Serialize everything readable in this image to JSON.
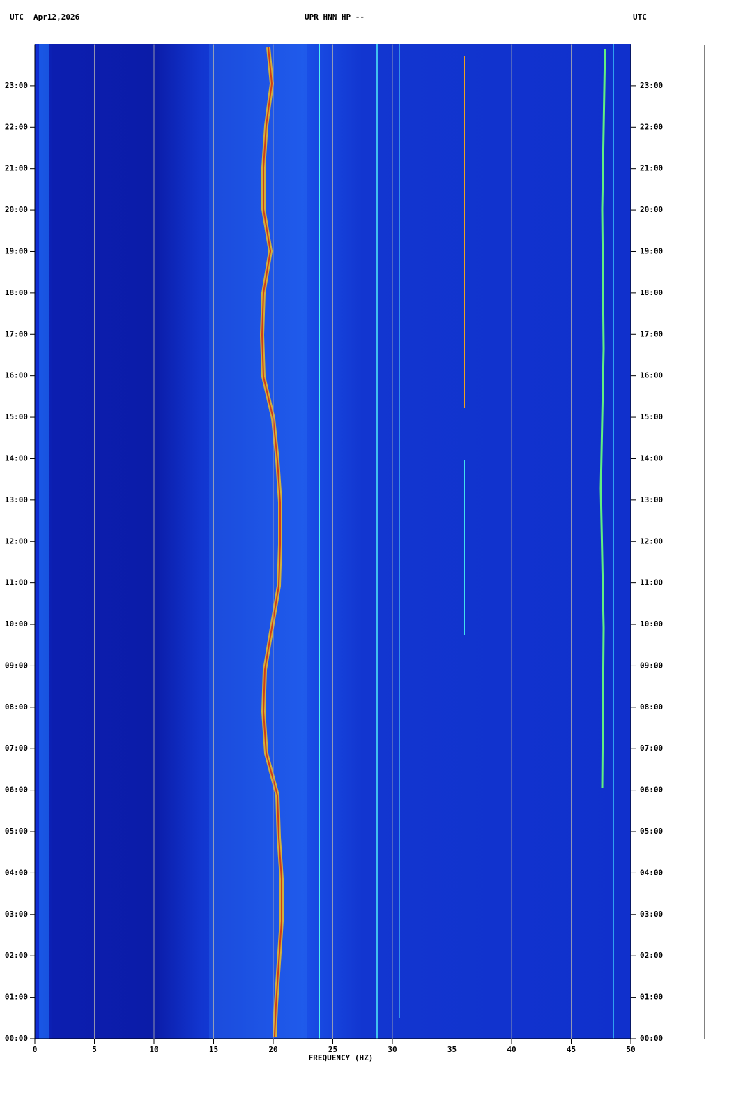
{
  "chart_data": {
    "type": "spectrogram",
    "time_zone_left": "UTC",
    "date": "Apr12,2026",
    "title": "UPR HNN HP --",
    "time_zone_right": "UTC",
    "xlabel": "FREQUENCY (HZ)",
    "xlim": [
      0,
      50
    ],
    "xticks": [
      0,
      5,
      10,
      15,
      20,
      25,
      30,
      35,
      40,
      45,
      50
    ],
    "xgrid": true,
    "ylim": [
      0,
      24
    ],
    "yticks": [
      {
        "value": 0,
        "label": "00:00"
      },
      {
        "value": 1,
        "label": "01:00"
      },
      {
        "value": 2,
        "label": "02:00"
      },
      {
        "value": 3,
        "label": "03:00"
      },
      {
        "value": 4,
        "label": "04:00"
      },
      {
        "value": 5,
        "label": "05:00"
      },
      {
        "value": 6,
        "label": "06:00"
      },
      {
        "value": 7,
        "label": "07:00"
      },
      {
        "value": 8,
        "label": "08:00"
      },
      {
        "value": 9,
        "label": "09:00"
      },
      {
        "value": 10,
        "label": "10:00"
      },
      {
        "value": 11,
        "label": "11:00"
      },
      {
        "value": 12,
        "label": "12:00"
      },
      {
        "value": 13,
        "label": "13:00"
      },
      {
        "value": 14,
        "label": "14:00"
      },
      {
        "value": 15,
        "label": "15:00"
      },
      {
        "value": 16,
        "label": "16:00"
      },
      {
        "value": 17,
        "label": "17:00"
      },
      {
        "value": 18,
        "label": "18:00"
      },
      {
        "value": 19,
        "label": "19:00"
      },
      {
        "value": 20,
        "label": "20:00"
      },
      {
        "value": 21,
        "label": "21:00"
      },
      {
        "value": 22,
        "label": "22:00"
      },
      {
        "value": 23,
        "label": "23:00"
      }
    ]
  }
}
